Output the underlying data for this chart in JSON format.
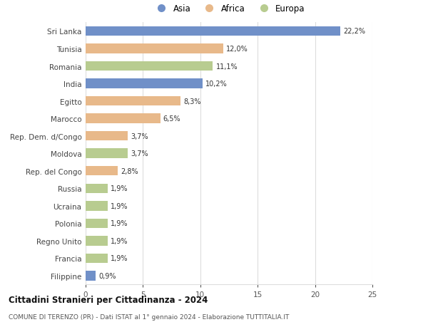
{
  "countries": [
    "Sri Lanka",
    "Tunisia",
    "Romania",
    "India",
    "Egitto",
    "Marocco",
    "Rep. Dem. d/Congo",
    "Moldova",
    "Rep. del Congo",
    "Russia",
    "Ucraina",
    "Polonia",
    "Regno Unito",
    "Francia",
    "Filippine"
  ],
  "values": [
    22.2,
    12.0,
    11.1,
    10.2,
    8.3,
    6.5,
    3.7,
    3.7,
    2.8,
    1.9,
    1.9,
    1.9,
    1.9,
    1.9,
    0.9
  ],
  "labels": [
    "22,2%",
    "12,0%",
    "11,1%",
    "10,2%",
    "8,3%",
    "6,5%",
    "3,7%",
    "3,7%",
    "2,8%",
    "1,9%",
    "1,9%",
    "1,9%",
    "1,9%",
    "1,9%",
    "0,9%"
  ],
  "continents": [
    "Asia",
    "Africa",
    "Europa",
    "Asia",
    "Africa",
    "Africa",
    "Africa",
    "Europa",
    "Africa",
    "Europa",
    "Europa",
    "Europa",
    "Europa",
    "Europa",
    "Asia"
  ],
  "colors": {
    "Asia": "#7090c8",
    "Africa": "#e8b98a",
    "Europa": "#b8cc90"
  },
  "title": "Cittadini Stranieri per Cittadinanza - 2024",
  "subtitle": "COMUNE DI TERENZO (PR) - Dati ISTAT al 1° gennaio 2024 - Elaborazione TUTTITALIA.IT",
  "xlim": [
    0,
    25
  ],
  "xticks": [
    0,
    5,
    10,
    15,
    20,
    25
  ],
  "background_color": "#ffffff",
  "grid_color": "#dddddd"
}
